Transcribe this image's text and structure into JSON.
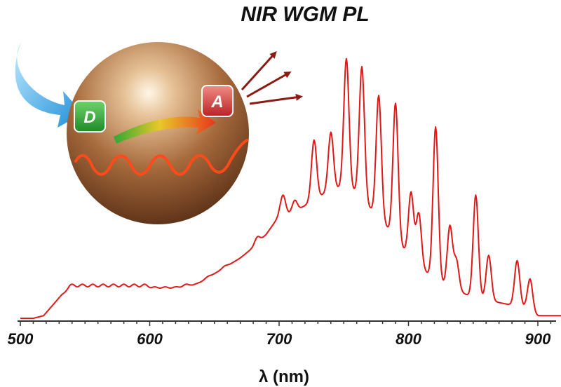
{
  "chart_data": {
    "type": "line",
    "title": "NIR WGM PL",
    "xlabel": "λ (nm)",
    "ylabel": "",
    "xlim": [
      500,
      920
    ],
    "ylim": [
      0,
      1.0
    ],
    "x_ticks": [
      500,
      600,
      700,
      800,
      900
    ],
    "grid": false,
    "legend": "none",
    "series": [
      {
        "color": "#e01818",
        "baseline": [
          [
            500,
            0.0
          ],
          [
            510,
            0.0
          ],
          [
            518,
            0.01
          ],
          [
            525,
            0.05
          ],
          [
            532,
            0.09
          ],
          [
            538,
            0.11
          ],
          [
            600,
            0.11
          ],
          [
            620,
            0.11
          ],
          [
            630,
            0.12
          ],
          [
            640,
            0.14
          ],
          [
            650,
            0.17
          ],
          [
            660,
            0.2
          ],
          [
            670,
            0.23
          ],
          [
            680,
            0.27
          ],
          [
            690,
            0.32
          ],
          [
            700,
            0.39
          ],
          [
            710,
            0.4
          ],
          [
            720,
            0.43
          ],
          [
            730,
            0.46
          ],
          [
            740,
            0.49
          ],
          [
            750,
            0.5
          ],
          [
            760,
            0.48
          ],
          [
            770,
            0.42
          ],
          [
            780,
            0.37
          ],
          [
            790,
            0.3
          ],
          [
            800,
            0.24
          ],
          [
            810,
            0.19
          ],
          [
            820,
            0.15
          ],
          [
            830,
            0.12
          ],
          [
            840,
            0.1
          ],
          [
            850,
            0.08
          ],
          [
            860,
            0.07
          ],
          [
            870,
            0.06
          ],
          [
            880,
            0.05
          ],
          [
            890,
            0.04
          ],
          [
            895,
            0.02
          ],
          [
            900,
            0.01
          ],
          [
            920,
            0.01
          ]
        ],
        "peaks": [
          {
            "x": 540,
            "y": 0.13
          },
          {
            "x": 548,
            "y": 0.13
          },
          {
            "x": 556,
            "y": 0.13
          },
          {
            "x": 564,
            "y": 0.13
          },
          {
            "x": 572,
            "y": 0.13
          },
          {
            "x": 580,
            "y": 0.13
          },
          {
            "x": 588,
            "y": 0.13
          },
          {
            "x": 596,
            "y": 0.13
          },
          {
            "x": 604,
            "y": 0.12
          },
          {
            "x": 612,
            "y": 0.12
          },
          {
            "x": 620,
            "y": 0.12
          },
          {
            "x": 628,
            "y": 0.13
          },
          {
            "x": 645,
            "y": 0.16
          },
          {
            "x": 658,
            "y": 0.2
          },
          {
            "x": 668,
            "y": 0.22
          },
          {
            "x": 683,
            "y": 0.31
          },
          {
            "x": 703,
            "y": 0.47
          },
          {
            "x": 712,
            "y": 0.45
          },
          {
            "x": 727,
            "y": 0.68
          },
          {
            "x": 740,
            "y": 0.71
          },
          {
            "x": 752,
            "y": 0.99
          },
          {
            "x": 764,
            "y": 0.96
          },
          {
            "x": 777,
            "y": 0.85
          },
          {
            "x": 790,
            "y": 0.82
          },
          {
            "x": 802,
            "y": 0.48
          },
          {
            "x": 808,
            "y": 0.4
          },
          {
            "x": 821,
            "y": 0.73
          },
          {
            "x": 832,
            "y": 0.35
          },
          {
            "x": 837,
            "y": 0.22
          },
          {
            "x": 852,
            "y": 0.47
          },
          {
            "x": 862,
            "y": 0.24
          },
          {
            "x": 884,
            "y": 0.22
          },
          {
            "x": 894,
            "y": 0.15
          }
        ]
      }
    ],
    "inset": {
      "donor_label": "D",
      "acceptor_label": "A",
      "donor_color": "#3aa83a",
      "acceptor_color": "#d03a38",
      "sphere_color": "#a0663a",
      "wave_color": "#ff4a1a",
      "emission_arrow_color": "#8b1a12",
      "excitation_arrow_color": "#29a7e8"
    }
  }
}
